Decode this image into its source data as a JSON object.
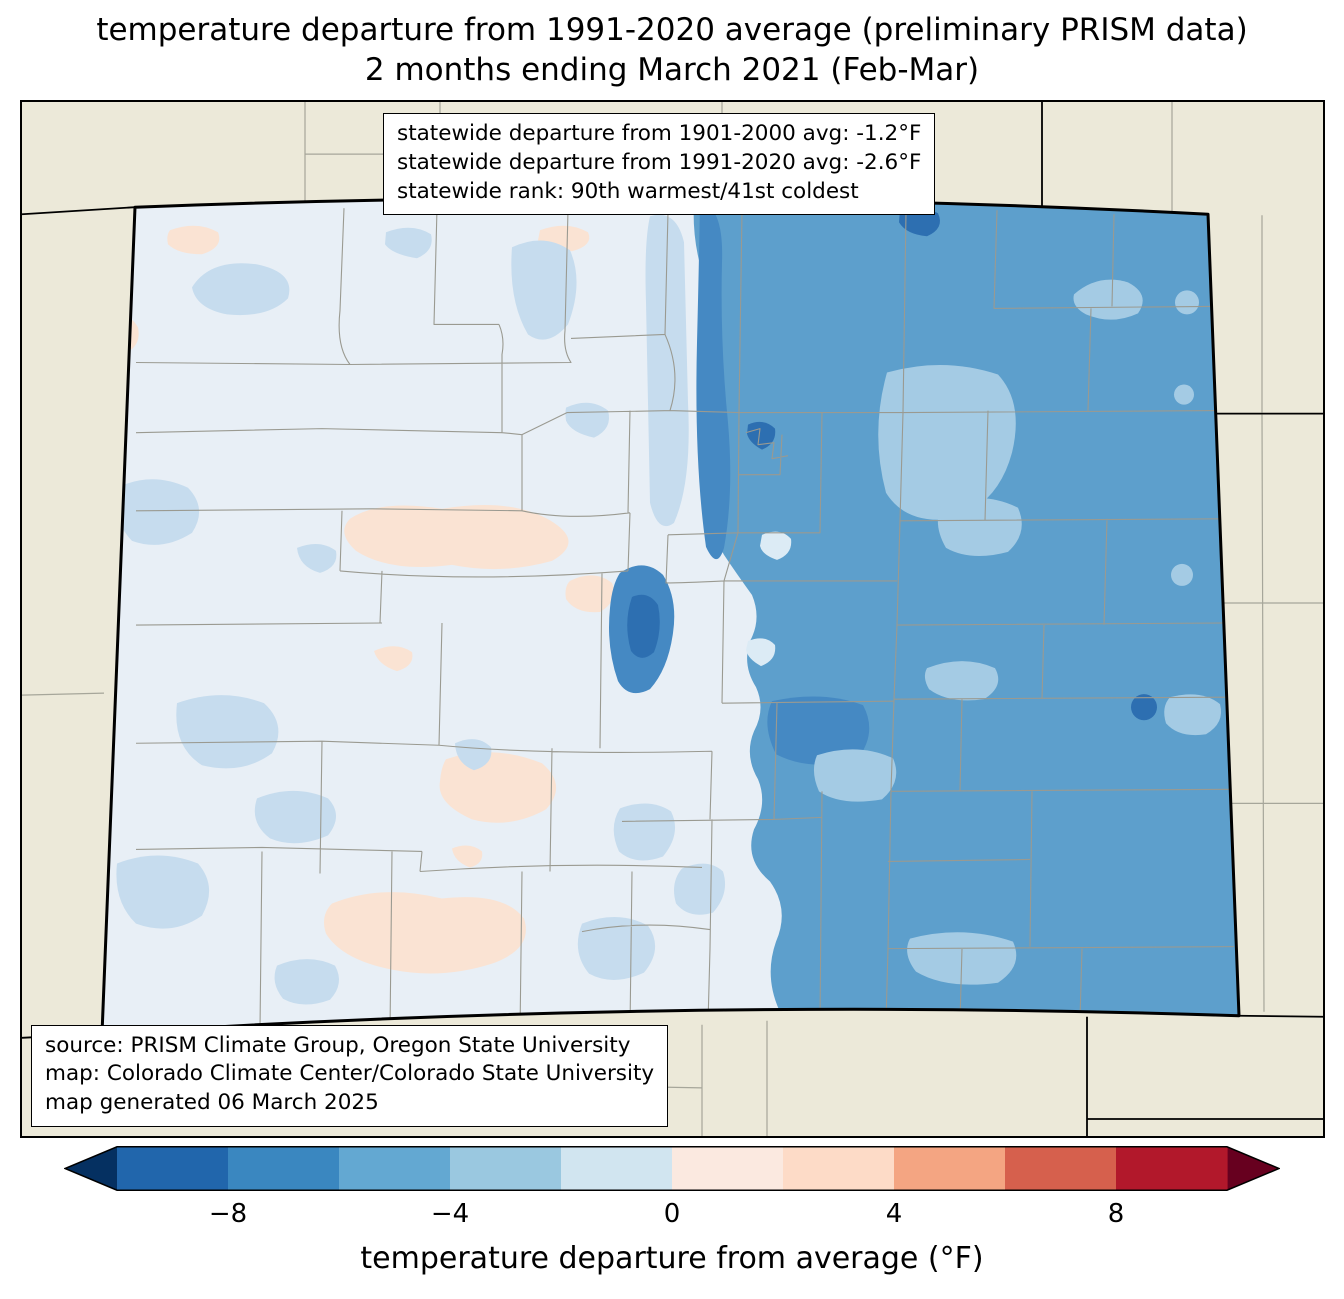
{
  "title": {
    "line1": "temperature departure from 1991-2020 average (preliminary PRISM data)",
    "line2": "2 months ending March 2021 (Feb-Mar)"
  },
  "stats_box": {
    "line1": "statewide departure from 1901-2000 avg: -1.2°F",
    "line2": "statewide departure from 1991-2020 avg: -2.6°F",
    "line3": "statewide rank: 90th warmest/41st coldest"
  },
  "stats": {
    "departure_1901_2000": "-1.2°F",
    "departure_1991_2020": "-2.6°F",
    "rank": "90th warmest/41st coldest"
  },
  "source_box": {
    "line1": "source: PRISM Climate Group, Oregon State University",
    "line2": "map: Colorado Climate Center/Colorado State University",
    "line3": "map generated 06 March 2025"
  },
  "colorbar": {
    "label": "temperature departure from average (°F)",
    "ticks": [
      "−8",
      "−4",
      "0",
      "4",
      "8"
    ],
    "tick_values": [
      -8,
      -4,
      0,
      4,
      8
    ],
    "range": [
      -10,
      10
    ],
    "under_color": "#053061",
    "over_color": "#67001f",
    "segment_colors": [
      "#2166ac",
      "#3a87c0",
      "#63a8d2",
      "#9ac8e0",
      "#d1e5f0",
      "#fbe9e0",
      "#fddbc7",
      "#f4a582",
      "#d6604d",
      "#b2182b"
    ]
  },
  "map": {
    "region": "Colorado",
    "colors": {
      "outside": "#ece9d9",
      "state_base": "#e8eff6",
      "peach": "#fae3d3",
      "light_blue": "#c6dcee",
      "lighter_blue": "#a4cbe4",
      "medium_blue": "#5d9fcc",
      "band_blue": "#4589c3",
      "dark_blue": "#2d6fb1",
      "pale_spot": "#dcebf5",
      "county_line": "#9a9a91",
      "neighbor_line": "#a6a69a",
      "state_border": "#000000"
    }
  }
}
